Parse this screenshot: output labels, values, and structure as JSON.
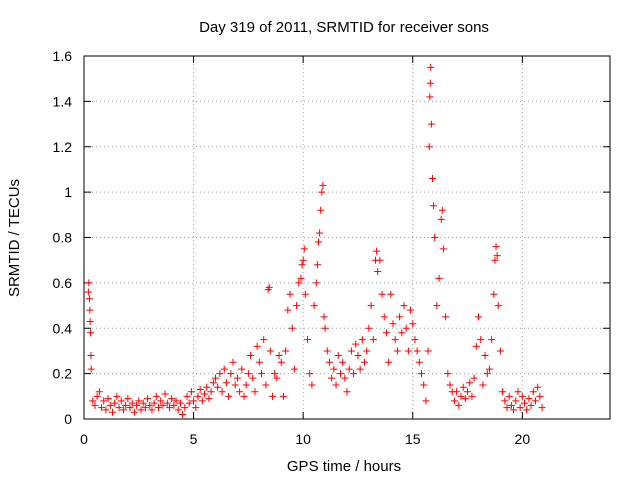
{
  "chart_data": {
    "type": "scatter",
    "title": "Day 319 of 2011, SRMTID for receiver sons",
    "xlabel": "GPS time / hours",
    "ylabel": "SRMTID / TECUs",
    "xlim": [
      0,
      24
    ],
    "ylim": [
      0,
      1.6
    ],
    "xticks": [
      0,
      5,
      10,
      15,
      20
    ],
    "xtick_labels": [
      "0",
      "5",
      "10",
      "15",
      "20"
    ],
    "yticks": [
      0,
      0.2,
      0.4,
      0.6,
      0.8,
      1,
      1.2,
      1.4,
      1.6
    ],
    "ytick_labels": [
      "0",
      "0.2",
      "0.4",
      "0.6",
      "0.8",
      "1",
      "1.2",
      "1.4",
      "1.6"
    ],
    "grid": true,
    "marker": "plus",
    "series_color": "#ff0000",
    "series": [
      {
        "name": "SRMTID",
        "points": [
          [
            0.2,
            0.56
          ],
          [
            0.22,
            0.6
          ],
          [
            0.25,
            0.53
          ],
          [
            0.27,
            0.48
          ],
          [
            0.28,
            0.43
          ],
          [
            0.3,
            0.38
          ],
          [
            0.32,
            0.28
          ],
          [
            0.33,
            0.22
          ],
          [
            0.4,
            0.08
          ],
          [
            0.5,
            0.06
          ],
          [
            0.6,
            0.1
          ],
          [
            0.7,
            0.12
          ],
          [
            0.8,
            0.05
          ],
          [
            0.9,
            0.08
          ],
          [
            1.0,
            0.04
          ],
          [
            1.1,
            0.09
          ],
          [
            1.2,
            0.06
          ],
          [
            1.3,
            0.03
          ],
          [
            1.4,
            0.07
          ],
          [
            1.5,
            0.1
          ],
          [
            1.6,
            0.05
          ],
          [
            1.7,
            0.08
          ],
          [
            1.8,
            0.04
          ],
          [
            1.9,
            0.06
          ],
          [
            2.0,
            0.09
          ],
          [
            2.1,
            0.05
          ],
          [
            2.2,
            0.07
          ],
          [
            2.3,
            0.03
          ],
          [
            2.4,
            0.06
          ],
          [
            2.5,
            0.08
          ],
          [
            2.6,
            0.04
          ],
          [
            2.7,
            0.07
          ],
          [
            2.8,
            0.05
          ],
          [
            2.9,
            0.09
          ],
          [
            3.0,
            0.06
          ],
          [
            3.1,
            0.04
          ],
          [
            3.2,
            0.07
          ],
          [
            3.3,
            0.1
          ],
          [
            3.4,
            0.05
          ],
          [
            3.5,
            0.08
          ],
          [
            3.6,
            0.06
          ],
          [
            3.7,
            0.11
          ],
          [
            3.8,
            0.07
          ],
          [
            3.9,
            0.05
          ],
          [
            4.0,
            0.09
          ],
          [
            4.1,
            0.06
          ],
          [
            4.2,
            0.08
          ],
          [
            4.3,
            0.04
          ],
          [
            4.4,
            0.07
          ],
          [
            4.5,
            0.02
          ],
          [
            4.6,
            0.05
          ],
          [
            4.7,
            0.1
          ],
          [
            4.8,
            0.07
          ],
          [
            4.9,
            0.12
          ],
          [
            5.0,
            0.08
          ],
          [
            5.1,
            0.05
          ],
          [
            5.2,
            0.1
          ],
          [
            5.3,
            0.13
          ],
          [
            5.4,
            0.08
          ],
          [
            5.5,
            0.11
          ],
          [
            5.6,
            0.14
          ],
          [
            5.7,
            0.09
          ],
          [
            5.8,
            0.12
          ],
          [
            5.9,
            0.16
          ],
          [
            6.0,
            0.18
          ],
          [
            6.1,
            0.14
          ],
          [
            6.2,
            0.2
          ],
          [
            6.3,
            0.12
          ],
          [
            6.4,
            0.22
          ],
          [
            6.5,
            0.16
          ],
          [
            6.6,
            0.1
          ],
          [
            6.7,
            0.2
          ],
          [
            6.8,
            0.25
          ],
          [
            6.9,
            0.15
          ],
          [
            7.0,
            0.18
          ],
          [
            7.1,
            0.12
          ],
          [
            7.2,
            0.22
          ],
          [
            7.3,
            0.1
          ],
          [
            7.4,
            0.15
          ],
          [
            7.5,
            0.2
          ],
          [
            7.6,
            0.28
          ],
          [
            7.7,
            0.18
          ],
          [
            7.8,
            0.12
          ],
          [
            7.9,
            0.32
          ],
          [
            8.0,
            0.25
          ],
          [
            8.1,
            0.2
          ],
          [
            8.2,
            0.35
          ],
          [
            8.3,
            0.15
          ],
          [
            8.4,
            0.57
          ],
          [
            8.45,
            0.58
          ],
          [
            8.5,
            0.3
          ],
          [
            8.6,
            0.1
          ],
          [
            8.7,
            0.2
          ],
          [
            8.8,
            0.18
          ],
          [
            8.9,
            0.28
          ],
          [
            9.0,
            0.25
          ],
          [
            9.1,
            0.1
          ],
          [
            9.2,
            0.3
          ],
          [
            9.3,
            0.48
          ],
          [
            9.4,
            0.55
          ],
          [
            9.5,
            0.4
          ],
          [
            9.6,
            0.22
          ],
          [
            9.7,
            0.5
          ],
          [
            9.8,
            0.6
          ],
          [
            9.9,
            0.62
          ],
          [
            9.95,
            0.68
          ],
          [
            10.0,
            0.7
          ],
          [
            10.05,
            0.75
          ],
          [
            10.1,
            0.55
          ],
          [
            10.2,
            0.35
          ],
          [
            10.3,
            0.2
          ],
          [
            10.4,
            0.15
          ],
          [
            10.5,
            0.5
          ],
          [
            10.6,
            0.6
          ],
          [
            10.65,
            0.68
          ],
          [
            10.7,
            0.78
          ],
          [
            10.75,
            0.82
          ],
          [
            10.8,
            0.92
          ],
          [
            10.85,
            1.0
          ],
          [
            10.9,
            1.03
          ],
          [
            10.95,
            0.45
          ],
          [
            11.0,
            0.4
          ],
          [
            11.1,
            0.3
          ],
          [
            11.2,
            0.25
          ],
          [
            11.3,
            0.18
          ],
          [
            11.4,
            0.22
          ],
          [
            11.5,
            0.15
          ],
          [
            11.6,
            0.28
          ],
          [
            11.7,
            0.2
          ],
          [
            11.8,
            0.25
          ],
          [
            11.9,
            0.18
          ],
          [
            12.0,
            0.12
          ],
          [
            12.1,
            0.22
          ],
          [
            12.2,
            0.3
          ],
          [
            12.3,
            0.2
          ],
          [
            12.4,
            0.33
          ],
          [
            12.5,
            0.28
          ],
          [
            12.6,
            0.22
          ],
          [
            12.7,
            0.35
          ],
          [
            12.8,
            0.25
          ],
          [
            12.9,
            0.3
          ],
          [
            13.0,
            0.4
          ],
          [
            13.1,
            0.5
          ],
          [
            13.2,
            0.35
          ],
          [
            13.3,
            0.7
          ],
          [
            13.35,
            0.74
          ],
          [
            13.4,
            0.65
          ],
          [
            13.5,
            0.7
          ],
          [
            13.6,
            0.55
          ],
          [
            13.7,
            0.45
          ],
          [
            13.8,
            0.38
          ],
          [
            13.9,
            0.25
          ],
          [
            14.0,
            0.55
          ],
          [
            14.1,
            0.42
          ],
          [
            14.2,
            0.35
          ],
          [
            14.3,
            0.3
          ],
          [
            14.4,
            0.45
          ],
          [
            14.5,
            0.38
          ],
          [
            14.6,
            0.5
          ],
          [
            14.7,
            0.4
          ],
          [
            14.8,
            0.3
          ],
          [
            14.9,
            0.48
          ],
          [
            15.0,
            0.42
          ],
          [
            15.1,
            0.35
          ],
          [
            15.2,
            0.3
          ],
          [
            15.3,
            0.25
          ],
          [
            15.4,
            0.2
          ],
          [
            15.5,
            0.15
          ],
          [
            15.6,
            0.08
          ],
          [
            15.7,
            0.3
          ],
          [
            15.75,
            1.2
          ],
          [
            15.78,
            1.42
          ],
          [
            15.8,
            1.48
          ],
          [
            15.82,
            1.55
          ],
          [
            15.85,
            1.3
          ],
          [
            15.9,
            1.06
          ],
          [
            15.95,
            0.94
          ],
          [
            16.0,
            0.8
          ],
          [
            16.1,
            0.5
          ],
          [
            16.2,
            0.62
          ],
          [
            16.3,
            0.88
          ],
          [
            16.35,
            0.92
          ],
          [
            16.4,
            0.75
          ],
          [
            16.5,
            0.45
          ],
          [
            16.6,
            0.2
          ],
          [
            16.7,
            0.15
          ],
          [
            16.8,
            0.12
          ],
          [
            16.9,
            0.08
          ],
          [
            17.0,
            0.12
          ],
          [
            17.1,
            0.06
          ],
          [
            17.2,
            0.1
          ],
          [
            17.3,
            0.14
          ],
          [
            17.4,
            0.09
          ],
          [
            17.5,
            0.12
          ],
          [
            17.6,
            0.16
          ],
          [
            17.7,
            0.1
          ],
          [
            17.8,
            0.18
          ],
          [
            17.9,
            0.32
          ],
          [
            18.0,
            0.45
          ],
          [
            18.1,
            0.35
          ],
          [
            18.2,
            0.15
          ],
          [
            18.3,
            0.28
          ],
          [
            18.4,
            0.2
          ],
          [
            18.5,
            0.22
          ],
          [
            18.6,
            0.35
          ],
          [
            18.7,
            0.55
          ],
          [
            18.75,
            0.7
          ],
          [
            18.8,
            0.76
          ],
          [
            18.85,
            0.72
          ],
          [
            18.9,
            0.5
          ],
          [
            19.0,
            0.3
          ],
          [
            19.1,
            0.12
          ],
          [
            19.2,
            0.08
          ],
          [
            19.3,
            0.05
          ],
          [
            19.4,
            0.1
          ],
          [
            19.5,
            0.06
          ],
          [
            19.6,
            0.04
          ],
          [
            19.7,
            0.08
          ],
          [
            19.8,
            0.12
          ],
          [
            19.9,
            0.05
          ],
          [
            20.0,
            0.1
          ],
          [
            20.1,
            0.07
          ],
          [
            20.2,
            0.04
          ],
          [
            20.3,
            0.09
          ],
          [
            20.4,
            0.06
          ],
          [
            20.5,
            0.12
          ],
          [
            20.6,
            0.08
          ],
          [
            20.7,
            0.14
          ],
          [
            20.8,
            0.1
          ],
          [
            20.9,
            0.05
          ]
        ]
      }
    ]
  }
}
